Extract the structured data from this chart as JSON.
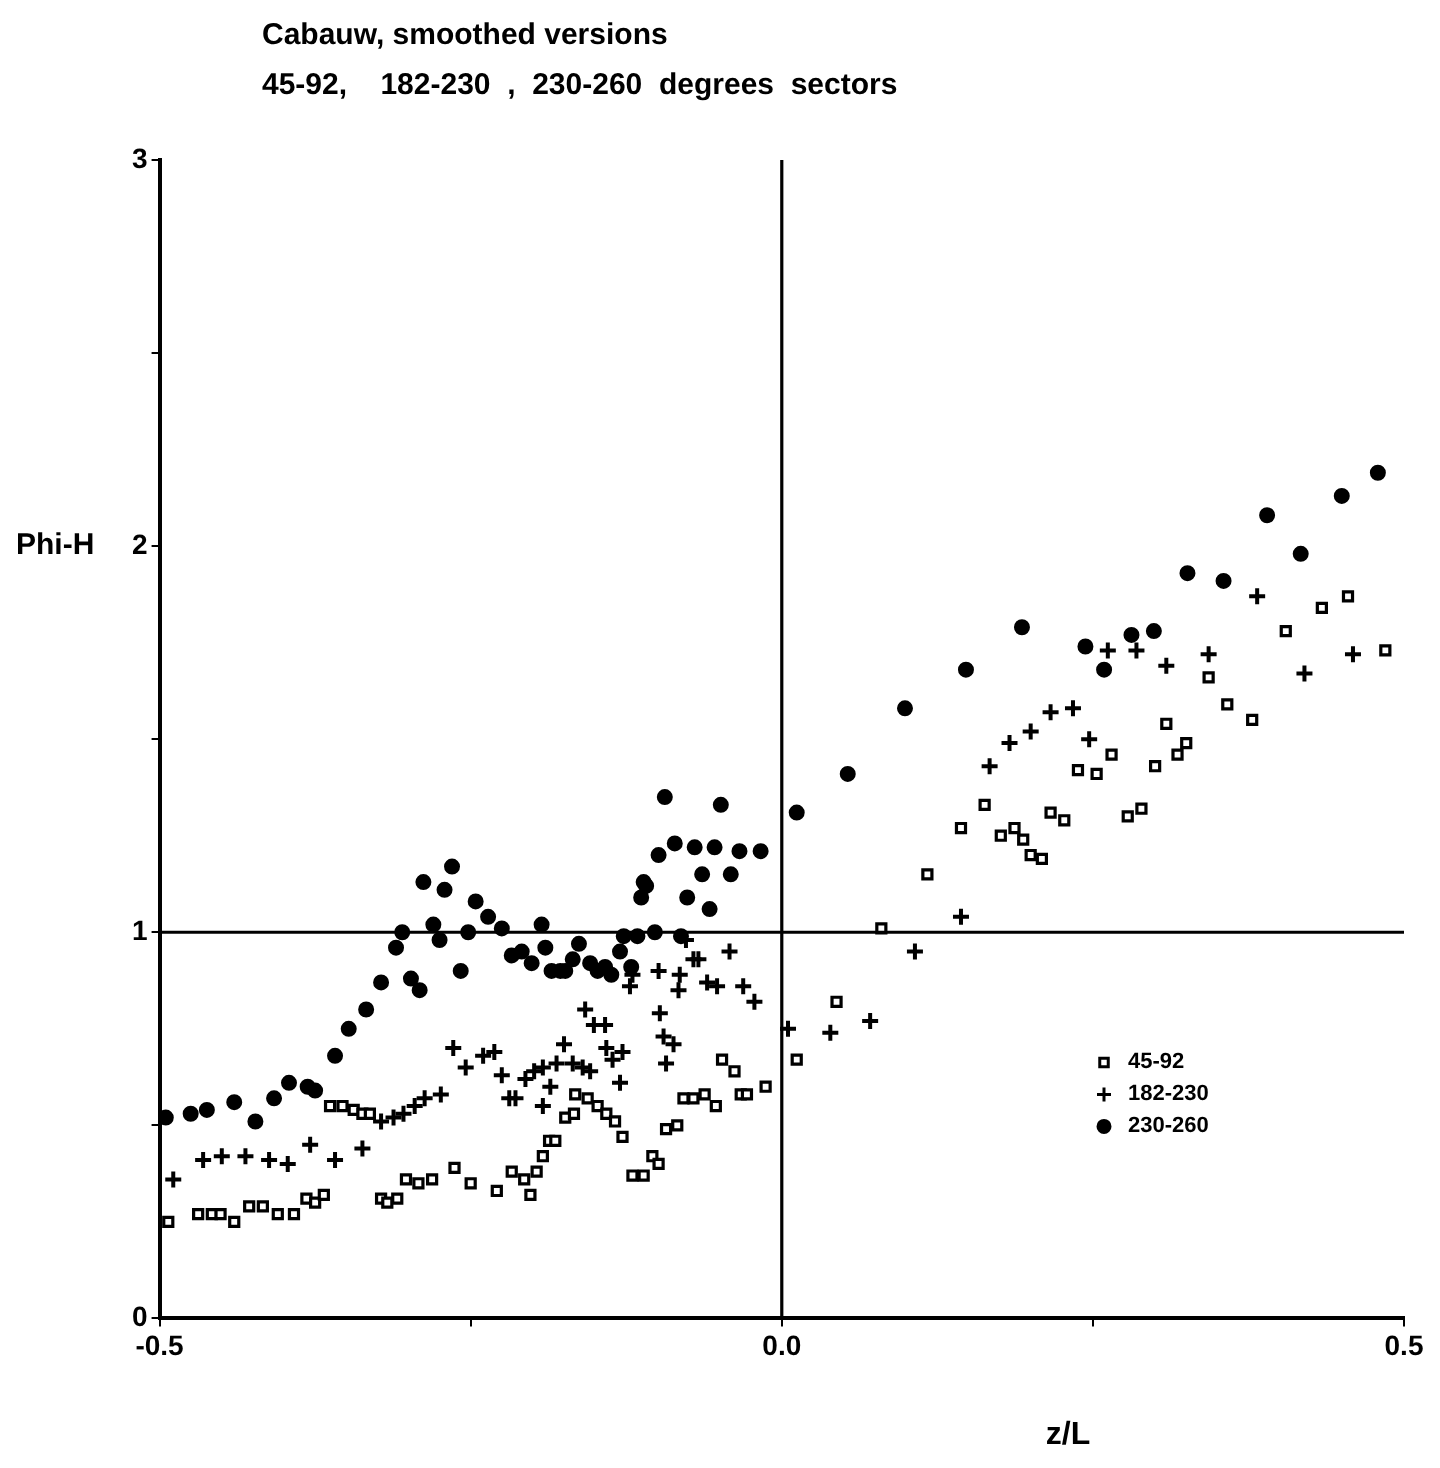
{
  "chart_data": {
    "type": "scatter",
    "title": "Cabauw, smoothed versions",
    "subtitle": "45-92,    182-230  ,  230-260  degrees  sectors",
    "xlabel": "z/L",
    "ylabel": "Phi-H",
    "xlim": [
      -0.5,
      0.5
    ],
    "ylim": [
      0,
      3
    ],
    "xticks": [
      {
        "value": -0.5,
        "label": "-0.5"
      },
      {
        "value": -0.25,
        "label": null
      },
      {
        "value": 0,
        "label": "0.0"
      },
      {
        "value": 0.25,
        "label": null
      },
      {
        "value": 0.5,
        "label": "0.5"
      }
    ],
    "yticks": [
      0,
      {
        "value": 0.5,
        "label": null
      },
      1,
      {
        "value": 1.5,
        "label": null
      },
      2,
      {
        "value": 2.5,
        "label": null
      },
      3
    ],
    "ref_lines": [
      {
        "axis": "x",
        "value": 0,
        "color": "#000000"
      },
      {
        "axis": "y",
        "value": 1,
        "color": "#000000"
      }
    ],
    "legend": "bottom right",
    "series": [
      {
        "name": "45-92",
        "color": "#000000",
        "marker": "square",
        "x": [
          -0.493,
          -0.469,
          -0.458,
          -0.451,
          -0.44,
          -0.428,
          -0.417,
          -0.405,
          -0.392,
          -0.382,
          -0.375,
          -0.368,
          -0.363,
          -0.353,
          -0.344,
          -0.337,
          -0.331,
          -0.322,
          -0.317,
          -0.309,
          -0.302,
          -0.292,
          -0.281,
          -0.263,
          -0.25,
          -0.229,
          -0.217,
          -0.207,
          -0.202,
          -0.197,
          -0.192,
          -0.187,
          -0.182,
          -0.174,
          -0.167,
          -0.166,
          -0.156,
          -0.148,
          -0.141,
          -0.134,
          -0.128,
          -0.12,
          -0.111,
          -0.104,
          -0.099,
          -0.093,
          -0.084,
          -0.079,
          -0.071,
          -0.062,
          -0.053,
          -0.048,
          -0.038,
          -0.033,
          -0.028,
          -0.013,
          0.012,
          0.044,
          0.08,
          0.117,
          0.144,
          0.163,
          0.176,
          0.187,
          0.194,
          0.2,
          0.209,
          0.216,
          0.227,
          0.238,
          0.253,
          0.265,
          0.278,
          0.289,
          0.3,
          0.309,
          0.318,
          0.325,
          0.343,
          0.358,
          0.378,
          0.405,
          0.434,
          0.455,
          0.485
        ],
        "values": [
          0.25,
          0.27,
          0.27,
          0.27,
          0.25,
          0.29,
          0.29,
          0.27,
          0.27,
          0.31,
          0.3,
          0.32,
          0.55,
          0.55,
          0.54,
          0.53,
          0.53,
          0.31,
          0.3,
          0.31,
          0.36,
          0.35,
          0.36,
          0.39,
          0.35,
          0.33,
          0.38,
          0.36,
          0.32,
          0.38,
          0.42,
          0.46,
          0.46,
          0.52,
          0.53,
          0.58,
          0.57,
          0.55,
          0.53,
          0.51,
          0.47,
          0.37,
          0.37,
          0.42,
          0.4,
          0.49,
          0.5,
          0.57,
          0.57,
          0.58,
          0.55,
          0.67,
          0.64,
          0.58,
          0.58,
          0.6,
          0.67,
          0.82,
          1.01,
          1.15,
          1.27,
          1.33,
          1.25,
          1.27,
          1.24,
          1.2,
          1.19,
          1.31,
          1.29,
          1.42,
          1.41,
          1.46,
          1.3,
          1.32,
          1.43,
          1.54,
          1.46,
          1.49,
          1.66,
          1.59,
          1.55,
          1.78,
          1.84,
          1.87,
          1.73
        ]
      },
      {
        "name": "182-230",
        "color": "#000000",
        "marker": "cross",
        "x": [
          -0.489,
          -0.465,
          -0.45,
          -0.431,
          -0.412,
          -0.397,
          -0.379,
          -0.359,
          -0.337,
          -0.322,
          -0.312,
          -0.304,
          -0.295,
          -0.287,
          -0.274,
          -0.264,
          -0.254,
          -0.24,
          -0.231,
          -0.225,
          -0.219,
          -0.214,
          -0.206,
          -0.199,
          -0.192,
          -0.192,
          -0.186,
          -0.181,
          -0.175,
          -0.168,
          -0.16,
          -0.158,
          -0.154,
          -0.151,
          -0.142,
          -0.141,
          -0.136,
          -0.13,
          -0.128,
          -0.122,
          -0.12,
          -0.099,
          -0.098,
          -0.095,
          -0.093,
          -0.087,
          -0.083,
          -0.082,
          -0.077,
          -0.071,
          -0.067,
          -0.06,
          -0.052,
          -0.042,
          -0.031,
          -0.022,
          0.005,
          0.039,
          0.071,
          0.107,
          0.144,
          0.167,
          0.183,
          0.2,
          0.216,
          0.234,
          0.247,
          0.262,
          0.285,
          0.309,
          0.343,
          0.382,
          0.42,
          0.459
        ],
        "values": [
          0.36,
          0.41,
          0.42,
          0.42,
          0.41,
          0.4,
          0.45,
          0.41,
          0.44,
          0.51,
          0.52,
          0.53,
          0.55,
          0.57,
          0.58,
          0.7,
          0.65,
          0.68,
          0.69,
          0.63,
          0.57,
          0.57,
          0.62,
          0.64,
          0.65,
          0.55,
          0.6,
          0.66,
          0.71,
          0.66,
          0.65,
          0.8,
          0.64,
          0.76,
          0.76,
          0.7,
          0.67,
          0.61,
          0.69,
          0.86,
          0.89,
          0.9,
          0.79,
          0.73,
          0.66,
          0.71,
          0.85,
          0.89,
          0.98,
          0.93,
          0.93,
          0.87,
          0.86,
          0.95,
          0.86,
          0.82,
          0.75,
          0.74,
          0.77,
          0.95,
          1.04,
          1.43,
          1.49,
          1.52,
          1.57,
          1.58,
          1.5,
          1.73,
          1.73,
          1.69,
          1.72,
          1.87,
          1.67,
          1.72
        ]
      },
      {
        "name": "230-260",
        "color": "#000000",
        "marker": "circle",
        "x": [
          -0.495,
          -0.475,
          -0.462,
          -0.44,
          -0.423,
          -0.408,
          -0.396,
          -0.381,
          -0.375,
          -0.359,
          -0.348,
          -0.334,
          -0.322,
          -0.31,
          -0.305,
          -0.298,
          -0.291,
          -0.288,
          -0.28,
          -0.275,
          -0.271,
          -0.265,
          -0.258,
          -0.252,
          -0.246,
          -0.236,
          -0.225,
          -0.217,
          -0.209,
          -0.201,
          -0.193,
          -0.19,
          -0.185,
          -0.178,
          -0.174,
          -0.168,
          -0.163,
          -0.154,
          -0.148,
          -0.142,
          -0.137,
          -0.13,
          -0.127,
          -0.121,
          -0.116,
          -0.113,
          -0.111,
          -0.109,
          -0.102,
          -0.099,
          -0.094,
          -0.086,
          -0.081,
          -0.076,
          -0.07,
          -0.064,
          -0.058,
          -0.054,
          -0.049,
          -0.041,
          -0.034,
          -0.017,
          0.012,
          0.053,
          0.099,
          0.148,
          0.193,
          0.244,
          0.259,
          0.281,
          0.299,
          0.326,
          0.355,
          0.39,
          0.417,
          0.45,
          0.479
        ],
        "values": [
          0.52,
          0.53,
          0.54,
          0.56,
          0.51,
          0.57,
          0.61,
          0.6,
          0.59,
          0.68,
          0.75,
          0.8,
          0.87,
          0.96,
          1.0,
          0.88,
          0.85,
          1.13,
          1.02,
          0.98,
          1.11,
          1.17,
          0.9,
          1.0,
          1.08,
          1.04,
          1.01,
          0.94,
          0.95,
          0.92,
          1.02,
          0.96,
          0.9,
          0.9,
          0.9,
          0.93,
          0.97,
          0.92,
          0.9,
          0.91,
          0.89,
          0.95,
          0.99,
          0.91,
          0.99,
          1.09,
          1.13,
          1.12,
          1.0,
          1.2,
          1.35,
          1.23,
          0.99,
          1.09,
          1.22,
          1.15,
          1.06,
          1.22,
          1.33,
          1.15,
          1.21,
          1.21,
          1.31,
          1.41,
          1.58,
          1.68,
          1.79,
          1.74,
          1.68,
          1.77,
          1.78,
          1.93,
          1.91,
          2.08,
          1.98,
          2.13,
          2.19
        ]
      }
    ]
  }
}
